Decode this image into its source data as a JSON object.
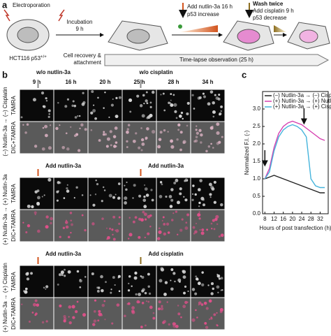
{
  "figure": {
    "panel_labels": [
      "a",
      "b",
      "c"
    ],
    "schematic": {
      "electroporation": "Electroporation",
      "cell_line": "HCT116 p53",
      "cell_line_sup": "+/+",
      "incubation": [
        "Incubation",
        "9 h"
      ],
      "recovery": [
        "Cell recovery &",
        "attachment"
      ],
      "nutlin": [
        "Add nutlin-3a 16 h",
        "p53 increase"
      ],
      "wash": "Wash twice",
      "cisplatin": [
        "Add cisplatin 9 h",
        "p53 decrease"
      ],
      "timelapse": "Time-lapse observation (25 h)"
    },
    "micrographs": {
      "columns": [
        "9 h",
        "16 h",
        "20 h",
        "25 h",
        "28 h",
        "34 h"
      ],
      "groups": [
        {
          "label": "(–) Nutlin-3a → (–) Cisplatin",
          "color": "#222222",
          "rows": [
            "TAMRA",
            "DIC+TAMRA"
          ],
          "notes": [
            "w/o nutlin-3a",
            "w/o cisplatin"
          ],
          "note_color": "#8a8a8a"
        },
        {
          "label": "(+) Nutlin-3a → (+) Nutlin-3a",
          "color": "#d63fb0",
          "rows": [
            "TAMRA",
            "DIC+TAMRA"
          ],
          "notes": [
            "Add nutlin-3a",
            "Add nutlin-3a"
          ],
          "note_color": "#d2541e"
        },
        {
          "label": "(+) Nutlin-3a → (+) Cisplatin",
          "color": "#45b4dc",
          "rows": [
            "TAMRA",
            "DIC+TAMRA"
          ],
          "notes": [
            "Add nutlin-3a",
            "Add cisplatin"
          ],
          "note_color": "#d2541e",
          "note2_color": "#8c6d1f"
        }
      ]
    }
  },
  "chart_data": {
    "type": "line",
    "xlabel": "Hours of post transfection (h)",
    "ylabel": "Normalized F.I. (-)",
    "x": [
      8,
      10,
      12,
      14,
      16,
      18,
      20,
      22,
      24,
      26,
      28,
      30,
      32,
      34
    ],
    "series": [
      {
        "name": "(–) Nutlin-3a → (–) Cisplatin",
        "color": "#222222",
        "values": [
          1.0,
          1.05,
          1.1,
          1.05,
          1.0,
          0.95,
          0.9,
          0.85,
          0.8,
          0.75,
          0.7,
          0.65,
          0.6,
          0.6
        ]
      },
      {
        "name": "(+) Nutlin-3a → (+) Nutlin-3a",
        "color": "#d63fb0",
        "values": [
          1.0,
          1.3,
          1.9,
          2.3,
          2.5,
          2.6,
          2.65,
          2.6,
          2.55,
          2.45,
          2.35,
          2.25,
          2.15,
          2.1
        ]
      },
      {
        "name": "(+) Nutlin-3a → (+) Cisplatin",
        "color": "#45b4dc",
        "values": [
          1.0,
          1.2,
          1.8,
          2.2,
          2.4,
          2.5,
          2.55,
          2.5,
          2.4,
          2.2,
          1.0,
          0.8,
          0.75,
          0.75
        ]
      }
    ],
    "xlim": [
      7,
      35.5
    ],
    "ylim": [
      0,
      3.5
    ],
    "xticks": [
      8,
      12,
      16,
      20,
      24,
      28,
      32
    ],
    "yticks": [
      {
        "value": 0,
        "label": "0.0"
      },
      {
        "value": 0.5,
        "label": "0.5"
      },
      {
        "value": 1,
        "label": "1.0"
      },
      {
        "value": 1.5,
        "label": "1.5"
      },
      {
        "value": 2,
        "label": "2.0"
      },
      {
        "value": 2.5,
        "label": "2.5"
      },
      {
        "value": 3,
        "label": "3.0"
      }
    ]
  }
}
